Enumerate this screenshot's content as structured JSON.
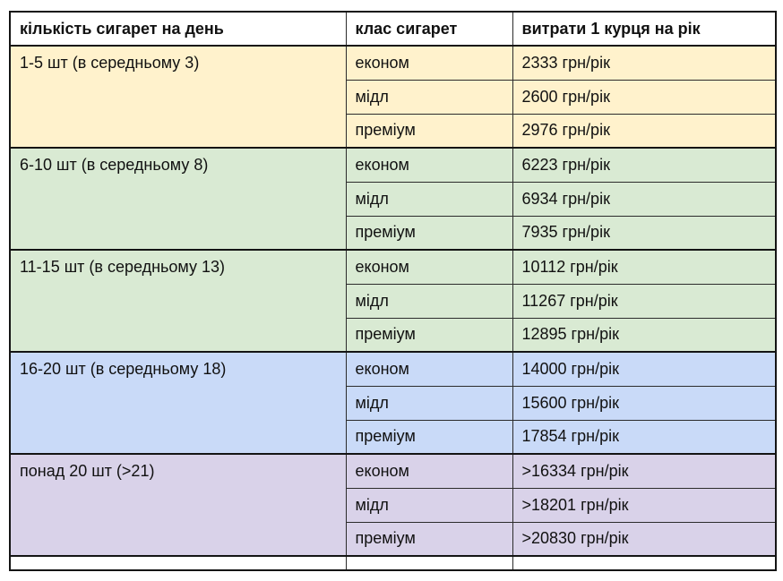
{
  "table": {
    "headers": [
      "кількість сигарет на день",
      "клас сигарет",
      "витрати 1 курця на рік"
    ],
    "groups": [
      {
        "label": "1-5 шт (в середньому 3)",
        "color": "#fff2cc",
        "rows": [
          {
            "class": "економ",
            "cost": "2333 грн/рік"
          },
          {
            "class": "мідл",
            "cost": "2600 грн/рік"
          },
          {
            "class": "преміум",
            "cost": "2976 грн/рік"
          }
        ]
      },
      {
        "label": "6-10 шт (в середньому 8)",
        "color": "#d9ead3",
        "rows": [
          {
            "class": "економ",
            "cost": "6223 грн/рік"
          },
          {
            "class": "мідл",
            "cost": "6934 грн/рік"
          },
          {
            "class": "преміум",
            "cost": "7935 грн/рік"
          }
        ]
      },
      {
        "label": "11-15 шт (в середньому 13)",
        "color": "#d9ead3",
        "rows": [
          {
            "class": "економ",
            "cost": "10112 грн/рік"
          },
          {
            "class": "мідл",
            "cost": "11267 грн/рік"
          },
          {
            "class": "преміум",
            "cost": "12895 грн/рік"
          }
        ]
      },
      {
        "label": "16-20 шт (в середньому 18)",
        "color": "#c9daf8",
        "rows": [
          {
            "class": "економ",
            "cost": "14000 грн/рік"
          },
          {
            "class": "мідл",
            "cost": "15600 грн/рік"
          },
          {
            "class": "преміум",
            "cost": "17854 грн/рік"
          }
        ]
      },
      {
        "label": "понад 20 шт (>21)",
        "color": "#d9d2e9",
        "rows": [
          {
            "class": "економ",
            "cost": ">16334 грн/рік"
          },
          {
            "class": "мідл",
            "cost": ">18201 грн/рік"
          },
          {
            "class": "преміум",
            "cost": ">20830 грн/рік"
          }
        ]
      }
    ]
  }
}
